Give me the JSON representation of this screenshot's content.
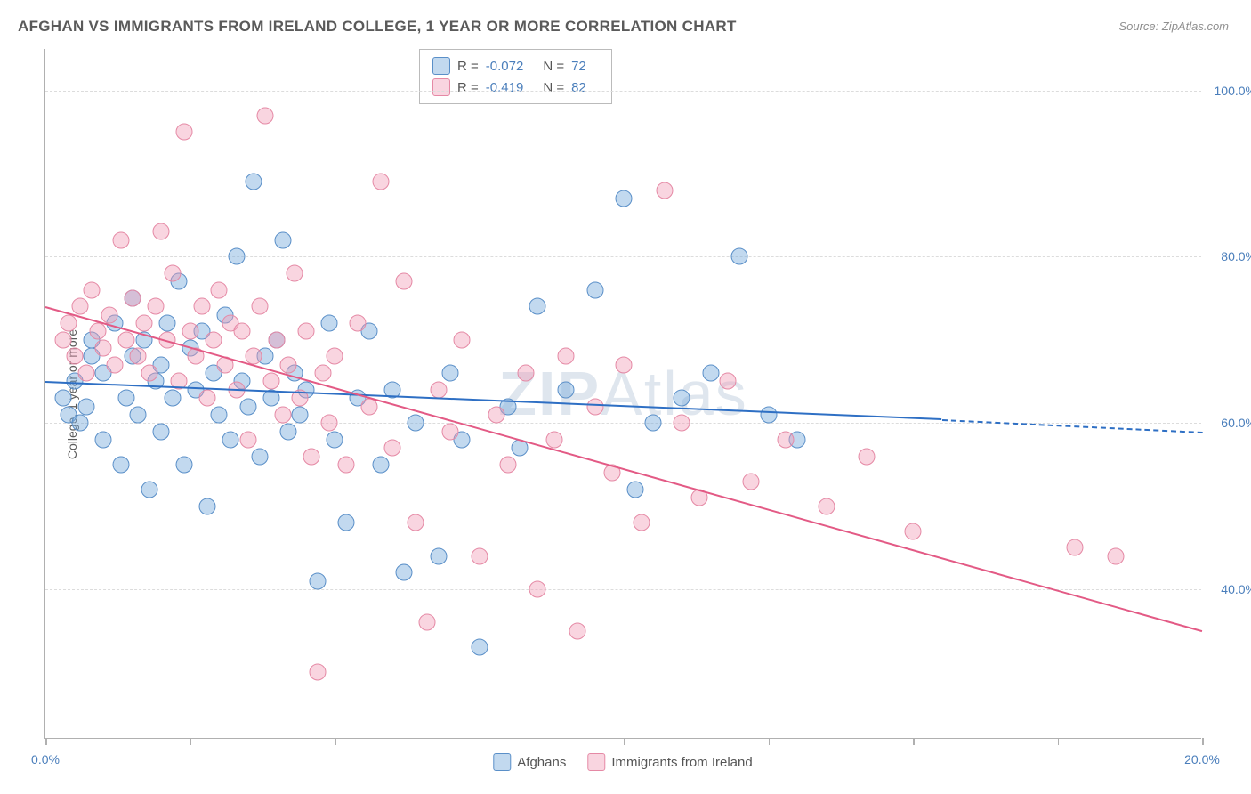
{
  "title": "AFGHAN VS IMMIGRANTS FROM IRELAND COLLEGE, 1 YEAR OR MORE CORRELATION CHART",
  "source": "Source: ZipAtlas.com",
  "watermark_bold": "ZIP",
  "watermark_rest": "Atlas",
  "y_axis_label": "College, 1 year or more",
  "chart": {
    "type": "scatter",
    "xlim": [
      0,
      20
    ],
    "ylim": [
      22,
      105
    ],
    "x_ticks": [
      0,
      2.5,
      5,
      7.5,
      10,
      12.5,
      15,
      17.5,
      20
    ],
    "x_tick_labels": {
      "0": "0.0%",
      "20": "20.0%"
    },
    "y_grid": [
      40,
      60,
      80,
      100
    ],
    "y_tick_labels": {
      "40": "40.0%",
      "60": "60.0%",
      "80": "80.0%",
      "100": "100.0%"
    },
    "background_color": "#ffffff",
    "grid_color": "#dcdcdc",
    "axis_color": "#b0b0b0",
    "tick_label_color": "#4a7ebb",
    "point_radius": 9.5
  },
  "series": [
    {
      "name": "Afghans",
      "fill_color": "rgba(120, 170, 220, 0.45)",
      "stroke_color": "#5a8fc8",
      "line_color": "#2e6fc4",
      "stats": {
        "R": "-0.072",
        "N": "72"
      },
      "trend": {
        "x1": 0,
        "y1": 65,
        "x2_solid": 15.5,
        "y2_solid": 60.5,
        "x2_dash": 20,
        "y2_dash": 59
      },
      "points": [
        [
          0.3,
          63
        ],
        [
          0.4,
          61
        ],
        [
          0.5,
          65
        ],
        [
          0.6,
          60
        ],
        [
          0.7,
          62
        ],
        [
          0.8,
          68
        ],
        [
          0.8,
          70
        ],
        [
          1.0,
          66
        ],
        [
          1.0,
          58
        ],
        [
          1.2,
          72
        ],
        [
          1.3,
          55
        ],
        [
          1.4,
          63
        ],
        [
          1.5,
          68
        ],
        [
          1.5,
          75
        ],
        [
          1.6,
          61
        ],
        [
          1.7,
          70
        ],
        [
          1.8,
          52
        ],
        [
          1.9,
          65
        ],
        [
          2.0,
          67
        ],
        [
          2.0,
          59
        ],
        [
          2.1,
          72
        ],
        [
          2.2,
          63
        ],
        [
          2.3,
          77
        ],
        [
          2.4,
          55
        ],
        [
          2.5,
          69
        ],
        [
          2.6,
          64
        ],
        [
          2.7,
          71
        ],
        [
          2.8,
          50
        ],
        [
          2.9,
          66
        ],
        [
          3.0,
          61
        ],
        [
          3.1,
          73
        ],
        [
          3.2,
          58
        ],
        [
          3.3,
          80
        ],
        [
          3.4,
          65
        ],
        [
          3.5,
          62
        ],
        [
          3.6,
          89
        ],
        [
          3.7,
          56
        ],
        [
          3.8,
          68
        ],
        [
          3.9,
          63
        ],
        [
          4.0,
          70
        ],
        [
          4.1,
          82
        ],
        [
          4.2,
          59
        ],
        [
          4.3,
          66
        ],
        [
          4.4,
          61
        ],
        [
          4.5,
          64
        ],
        [
          4.7,
          41
        ],
        [
          4.9,
          72
        ],
        [
          5.0,
          58
        ],
        [
          5.2,
          48
        ],
        [
          5.4,
          63
        ],
        [
          5.6,
          71
        ],
        [
          5.8,
          55
        ],
        [
          6.0,
          64
        ],
        [
          6.2,
          42
        ],
        [
          6.4,
          60
        ],
        [
          6.8,
          44
        ],
        [
          7.0,
          66
        ],
        [
          7.2,
          58
        ],
        [
          7.5,
          33
        ],
        [
          8.0,
          62
        ],
        [
          8.2,
          57
        ],
        [
          8.5,
          74
        ],
        [
          9.0,
          64
        ],
        [
          9.5,
          76
        ],
        [
          10.0,
          87
        ],
        [
          10.2,
          52
        ],
        [
          10.5,
          60
        ],
        [
          11.0,
          63
        ],
        [
          11.5,
          66
        ],
        [
          12.0,
          80
        ],
        [
          12.5,
          61
        ],
        [
          13.0,
          58
        ]
      ]
    },
    {
      "name": "Immigrants from Ireland",
      "fill_color": "rgba(240, 155, 180, 0.42)",
      "stroke_color": "#e589a5",
      "line_color": "#e35a85",
      "stats": {
        "R": "-0.419",
        "N": "82"
      },
      "trend": {
        "x1": 0,
        "y1": 74,
        "x2_solid": 20,
        "y2_solid": 35,
        "x2_dash": 20,
        "y2_dash": 35
      },
      "points": [
        [
          0.3,
          70
        ],
        [
          0.4,
          72
        ],
        [
          0.5,
          68
        ],
        [
          0.6,
          74
        ],
        [
          0.7,
          66
        ],
        [
          0.8,
          76
        ],
        [
          0.9,
          71
        ],
        [
          1.0,
          69
        ],
        [
          1.1,
          73
        ],
        [
          1.2,
          67
        ],
        [
          1.3,
          82
        ],
        [
          1.4,
          70
        ],
        [
          1.5,
          75
        ],
        [
          1.6,
          68
        ],
        [
          1.7,
          72
        ],
        [
          1.8,
          66
        ],
        [
          1.9,
          74
        ],
        [
          2.0,
          83
        ],
        [
          2.1,
          70
        ],
        [
          2.2,
          78
        ],
        [
          2.3,
          65
        ],
        [
          2.4,
          95
        ],
        [
          2.5,
          71
        ],
        [
          2.6,
          68
        ],
        [
          2.7,
          74
        ],
        [
          2.8,
          63
        ],
        [
          2.9,
          70
        ],
        [
          3.0,
          76
        ],
        [
          3.1,
          67
        ],
        [
          3.2,
          72
        ],
        [
          3.3,
          64
        ],
        [
          3.4,
          71
        ],
        [
          3.5,
          58
        ],
        [
          3.6,
          68
        ],
        [
          3.7,
          74
        ],
        [
          3.8,
          97
        ],
        [
          3.9,
          65
        ],
        [
          4.0,
          70
        ],
        [
          4.1,
          61
        ],
        [
          4.2,
          67
        ],
        [
          4.3,
          78
        ],
        [
          4.4,
          63
        ],
        [
          4.5,
          71
        ],
        [
          4.6,
          56
        ],
        [
          4.7,
          30
        ],
        [
          4.8,
          66
        ],
        [
          4.9,
          60
        ],
        [
          5.0,
          68
        ],
        [
          5.2,
          55
        ],
        [
          5.4,
          72
        ],
        [
          5.6,
          62
        ],
        [
          5.8,
          89
        ],
        [
          6.0,
          57
        ],
        [
          6.2,
          77
        ],
        [
          6.4,
          48
        ],
        [
          6.6,
          36
        ],
        [
          6.8,
          64
        ],
        [
          7.0,
          59
        ],
        [
          7.2,
          70
        ],
        [
          7.5,
          44
        ],
        [
          7.8,
          61
        ],
        [
          8.0,
          55
        ],
        [
          8.3,
          66
        ],
        [
          8.5,
          40
        ],
        [
          8.8,
          58
        ],
        [
          9.0,
          68
        ],
        [
          9.2,
          35
        ],
        [
          9.5,
          62
        ],
        [
          9.8,
          54
        ],
        [
          10.0,
          67
        ],
        [
          10.3,
          48
        ],
        [
          10.7,
          88
        ],
        [
          11.0,
          60
        ],
        [
          11.3,
          51
        ],
        [
          11.8,
          65
        ],
        [
          12.2,
          53
        ],
        [
          12.8,
          58
        ],
        [
          13.5,
          50
        ],
        [
          14.2,
          56
        ],
        [
          15.0,
          47
        ],
        [
          17.8,
          45
        ],
        [
          18.5,
          44
        ]
      ]
    }
  ],
  "stats_legend": {
    "rows": [
      {
        "swatch_fill": "rgba(120,170,220,0.45)",
        "swatch_stroke": "#5a8fc8",
        "R_label": "R =",
        "R_val": "-0.072",
        "N_label": "N =",
        "N_val": "72"
      },
      {
        "swatch_fill": "rgba(240,155,180,0.42)",
        "swatch_stroke": "#e589a5",
        "R_label": "R =",
        "R_val": "-0.419",
        "N_label": "N =",
        "N_val": "82"
      }
    ]
  },
  "bottom_legend": [
    {
      "swatch_fill": "rgba(120,170,220,0.45)",
      "swatch_stroke": "#5a8fc8",
      "label": "Afghans"
    },
    {
      "swatch_fill": "rgba(240,155,180,0.42)",
      "swatch_stroke": "#e589a5",
      "label": "Immigrants from Ireland"
    }
  ]
}
